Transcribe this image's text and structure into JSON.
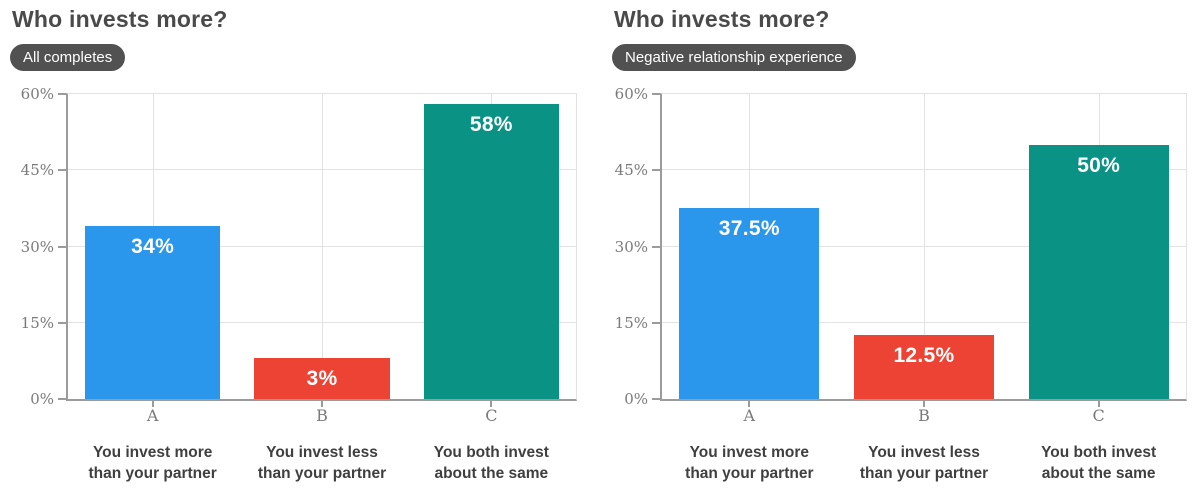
{
  "chart_data": [
    {
      "type": "bar",
      "title": "Who invests more?",
      "badge": "All completes",
      "categories": [
        "A",
        "B",
        "C"
      ],
      "category_captions": [
        "You invest more\nthan your partner",
        "You invest less\nthan your partner",
        "You both invest\nabout the same"
      ],
      "values": [
        34,
        3,
        58
      ],
      "value_labels": [
        "34%",
        "3%",
        "58%"
      ],
      "bar_colors": [
        "#2a96ec",
        "#ec4335",
        "#0a9385"
      ],
      "ylim": [
        0,
        60
      ],
      "ytick_values": [
        0,
        15,
        30,
        45,
        60
      ],
      "ytick_labels": [
        "0%",
        "15%",
        "30%",
        "45%",
        "60%"
      ],
      "grid": true,
      "legend": false,
      "min_display_pct": 8
    },
    {
      "type": "bar",
      "title": "Who invests more?",
      "badge": "Negative relationship experience",
      "categories": [
        "A",
        "B",
        "C"
      ],
      "category_captions": [
        "You invest more\nthan your partner",
        "You invest less\nthan your partner",
        "You both invest\nabout the same"
      ],
      "values": [
        37.5,
        12.5,
        50
      ],
      "value_labels": [
        "37.5%",
        "12.5%",
        "50%"
      ],
      "bar_colors": [
        "#2a96ec",
        "#ec4335",
        "#0a9385"
      ],
      "ylim": [
        0,
        60
      ],
      "ytick_values": [
        0,
        15,
        30,
        45,
        60
      ],
      "ytick_labels": [
        "0%",
        "15%",
        "30%",
        "45%",
        "60%"
      ],
      "grid": true,
      "legend": false,
      "min_display_pct": 8
    }
  ],
  "colors": {
    "title_text": "#4a4a4a",
    "badge_background": "#515151",
    "badge_text": "#ffffff",
    "axis": "#9b9b9b",
    "gridline": "#e2e2e2",
    "tick_text": "#7a7a7a",
    "caption_text": "#3f3f3f",
    "bar_blue": "#2a96ec",
    "bar_red": "#ec4335",
    "bar_teal": "#0a9385",
    "bar_value_text": "#ffffff"
  }
}
